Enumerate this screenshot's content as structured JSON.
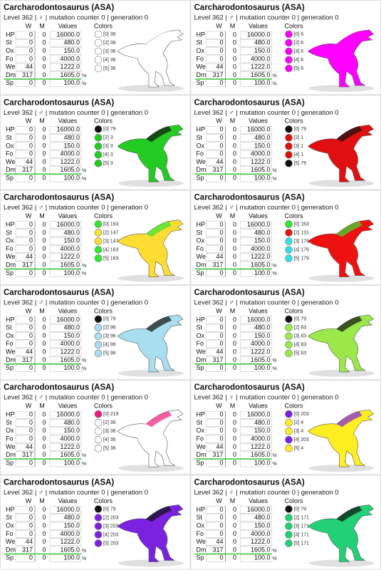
{
  "headers": [
    "W",
    "M",
    "Values",
    "Colors"
  ],
  "cards": [
    {
      "title": "Carcharodontosaurus (ASA)",
      "info": "Level 362 | ♀ | mutation counter 0 | generation 0",
      "stats": [
        [
          "HP",
          "0",
          "0",
          "16000.0",
          ""
        ],
        [
          "St",
          "0",
          "0",
          "480.0",
          ""
        ],
        [
          "Ox",
          "0",
          "0",
          "150.0",
          ""
        ],
        [
          "Fo",
          "0",
          "0",
          "4000.0",
          ""
        ],
        [
          "We",
          "44",
          "0",
          "1222.0",
          ""
        ],
        [
          "Dm",
          "317",
          "0",
          "1605.0",
          "%"
        ],
        [
          "Sp",
          "0",
          "0",
          "100.0",
          "%"
        ]
      ],
      "colors": [
        {
          "label": "[0] 36",
          "color": "#ffffff"
        },
        {
          "label": "[2] 36",
          "color": "#ffffff"
        },
        {
          "label": "[3] 36",
          "color": "#ffffff"
        },
        {
          "label": "[4] 36",
          "color": "#ffffff"
        },
        {
          "label": "[5] 36",
          "color": "#ffffff"
        }
      ]
    },
    {
      "title": "Carcharodontosaurus (ASA)",
      "info": "Level 362 | ♂ | mutation counter 0 | generation 0",
      "stats": [
        [
          "HP",
          "0",
          "0",
          "16000.0",
          ""
        ],
        [
          "St",
          "0",
          "0",
          "480.0",
          ""
        ],
        [
          "Ox",
          "0",
          "0",
          "150.0",
          ""
        ],
        [
          "Fo",
          "0",
          "0",
          "4000.0",
          ""
        ],
        [
          "We",
          "44",
          "0",
          "1222.0",
          ""
        ],
        [
          "Dm",
          "317",
          "0",
          "1605.0",
          "%"
        ],
        [
          "Sp",
          "0",
          "0",
          "100.0",
          "%"
        ]
      ],
      "colors": [
        {
          "label": "[0] 6",
          "color": "#ff00ff"
        },
        {
          "label": "[2] 6",
          "color": "#ff00ff"
        },
        {
          "label": "[3] 6",
          "color": "#ff00ff"
        },
        {
          "label": "[4] 6",
          "color": "#ff00ff"
        },
        {
          "label": "[5] 6",
          "color": "#ff00ff"
        }
      ]
    },
    {
      "title": "Carcharodontosaurus (ASA)",
      "info": "Level 362 | ♂ | mutation counter 0 | generation 0",
      "stats": [
        [
          "HP",
          "0",
          "0",
          "16000.0",
          ""
        ],
        [
          "St",
          "0",
          "0",
          "480.0",
          ""
        ],
        [
          "Ox",
          "0",
          "0",
          "150.0",
          ""
        ],
        [
          "Fo",
          "0",
          "0",
          "4000.0",
          ""
        ],
        [
          "We",
          "44",
          "0",
          "1222.0",
          ""
        ],
        [
          "Dm",
          "317",
          "0",
          "1605.0",
          "%"
        ],
        [
          "Sp",
          "0",
          "0",
          "100.0",
          "%"
        ]
      ],
      "colors": [
        {
          "label": "[0] 79",
          "color": "#111111"
        },
        {
          "label": "[2] 3",
          "color": "#22cc22"
        },
        {
          "label": "[3] 3",
          "color": "#22cc22"
        },
        {
          "label": "[4] 3",
          "color": "#22cc22"
        },
        {
          "label": "[5] 3",
          "color": "#22cc22"
        }
      ]
    },
    {
      "title": "Carcharodontosaurus (ASA)",
      "info": "Level 362 | ♂ | mutation counter 0 | generation 0",
      "stats": [
        [
          "HP",
          "0",
          "0",
          "16000.0",
          ""
        ],
        [
          "St",
          "0",
          "0",
          "480.0",
          ""
        ],
        [
          "Ox",
          "0",
          "0",
          "150.0",
          ""
        ],
        [
          "Fo",
          "0",
          "0",
          "4000.0",
          ""
        ],
        [
          "We",
          "44",
          "0",
          "1222.0",
          ""
        ],
        [
          "Dm",
          "317",
          "0",
          "1605.0",
          "%"
        ],
        [
          "Sp",
          "0",
          "0",
          "100.0",
          "%"
        ]
      ],
      "colors": [
        {
          "label": "[0] 79",
          "color": "#111111"
        },
        {
          "label": "[2] 1",
          "color": "#e01010"
        },
        {
          "label": "[3] 1",
          "color": "#e01010"
        },
        {
          "label": "[4] 1",
          "color": "#e01010"
        },
        {
          "label": "[5] 79",
          "color": "#111111"
        }
      ]
    },
    {
      "title": "Carcharodontosaurus (ASA)",
      "info": "Level 362 | ♂ | mutation counter 0 | generation 0",
      "stats": [
        [
          "HP",
          "0",
          "0",
          "16000.0",
          ""
        ],
        [
          "St",
          "0",
          "0",
          "480.0",
          ""
        ],
        [
          "Ox",
          "0",
          "0",
          "150.0",
          ""
        ],
        [
          "Fo",
          "0",
          "0",
          "4000.0",
          ""
        ],
        [
          "We",
          "44",
          "0",
          "1222.0",
          ""
        ],
        [
          "Dm",
          "317",
          "0",
          "1605.0",
          "%"
        ],
        [
          "Sp",
          "0",
          "0",
          "100.0",
          "%"
        ]
      ],
      "colors": [
        {
          "label": "[0] 163",
          "color": "#33e633"
        },
        {
          "label": "[2] 147",
          "color": "#ffdd33"
        },
        {
          "label": "[3] 147",
          "color": "#ffdd33"
        },
        {
          "label": "[4] 163",
          "color": "#33e633"
        },
        {
          "label": "[5] 163",
          "color": "#33e633"
        }
      ]
    },
    {
      "title": "Carcharodontosaurus (ASA)",
      "info": "Level 362 | ♂ | mutation counter 0 | generation 0",
      "stats": [
        [
          "HP",
          "0",
          "0",
          "16000.0",
          ""
        ],
        [
          "St",
          "0",
          "0",
          "480.0",
          ""
        ],
        [
          "Ox",
          "0",
          "0",
          "150.0",
          ""
        ],
        [
          "Fo",
          "0",
          "0",
          "4000.0",
          ""
        ],
        [
          "We",
          "44",
          "0",
          "1222.0",
          ""
        ],
        [
          "Dm",
          "317",
          "0",
          "1605.0",
          "%"
        ],
        [
          "Sp",
          "0",
          "0",
          "100.0",
          "%"
        ]
      ],
      "colors": [
        {
          "label": "[0] 163",
          "color": "#33e633"
        },
        {
          "label": "[2] 131",
          "color": "#ee1111"
        },
        {
          "label": "[3] 179",
          "color": "#33e0e8"
        },
        {
          "label": "[4] 179",
          "color": "#33e0e8"
        },
        {
          "label": "[5] 179",
          "color": "#33e0e8"
        }
      ]
    },
    {
      "title": "Carcharodontosaurus (ASA)",
      "info": "Level 362 | ♂ | mutation counter 0 | generation 0",
      "stats": [
        [
          "HP",
          "0",
          "0",
          "16000.0",
          ""
        ],
        [
          "St",
          "0",
          "0",
          "480.0",
          ""
        ],
        [
          "Ox",
          "0",
          "0",
          "150.0",
          ""
        ],
        [
          "Fo",
          "0",
          "0",
          "4000.0",
          ""
        ],
        [
          "We",
          "44",
          "0",
          "1222.0",
          ""
        ],
        [
          "Dm",
          "317",
          "0",
          "1605.0",
          "%"
        ],
        [
          "Sp",
          "0",
          "0",
          "100.0",
          "%"
        ]
      ],
      "colors": [
        {
          "label": "[0] 79",
          "color": "#111111"
        },
        {
          "label": "[2] 96",
          "color": "#a8def0"
        },
        {
          "label": "[3] 96",
          "color": "#a8def0"
        },
        {
          "label": "[4] 96",
          "color": "#a8def0"
        },
        {
          "label": "[5] 96",
          "color": "#a8def0"
        }
      ]
    },
    {
      "title": "Carcharodontosaurus (ASA)",
      "info": "Level 362 | ♂ | mutation counter 0 | generation 0",
      "stats": [
        [
          "HP",
          "0",
          "0",
          "16000.0",
          ""
        ],
        [
          "St",
          "0",
          "0",
          "480.0",
          ""
        ],
        [
          "Ox",
          "0",
          "0",
          "150.0",
          ""
        ],
        [
          "Fo",
          "0",
          "0",
          "4000.0",
          ""
        ],
        [
          "We",
          "44",
          "0",
          "1222.0",
          ""
        ],
        [
          "Dm",
          "317",
          "0",
          "1605.0",
          "%"
        ],
        [
          "Sp",
          "0",
          "0",
          "100.0",
          "%"
        ]
      ],
      "colors": [
        {
          "label": "[0] 79",
          "color": "#111111"
        },
        {
          "label": "[2] 83",
          "color": "#9be84a"
        },
        {
          "label": "[3] 83",
          "color": "#9be84a"
        },
        {
          "label": "[4] 83",
          "color": "#9be84a"
        },
        {
          "label": "[5] 83",
          "color": "#9be84a"
        }
      ]
    },
    {
      "title": "Carcharodontosaurus (ASA)",
      "info": "Level 362 | ♂ | mutation counter 0 | generation 0",
      "stats": [
        [
          "HP",
          "0",
          "0",
          "16000.0",
          ""
        ],
        [
          "St",
          "0",
          "0",
          "480.0",
          ""
        ],
        [
          "Ox",
          "0",
          "0",
          "150.0",
          ""
        ],
        [
          "Fo",
          "0",
          "0",
          "4000.0",
          ""
        ],
        [
          "We",
          "44",
          "0",
          "1222.0",
          ""
        ],
        [
          "Dm",
          "317",
          "0",
          "1605.0",
          "%"
        ],
        [
          "Sp",
          "0",
          "0",
          "100.0",
          "%"
        ]
      ],
      "colors": [
        {
          "label": "[0] 219",
          "color": "#ee1a7a"
        },
        {
          "label": "[2] 36",
          "color": "#ffffff"
        },
        {
          "label": "[3] 36",
          "color": "#ffffff"
        },
        {
          "label": "[4] 36",
          "color": "#ffffff"
        },
        {
          "label": "[5] 36",
          "color": "#ffffff"
        }
      ]
    },
    {
      "title": "Carcharodontosaurus (ASA)",
      "info": "Level 362 | ♀ | mutation counter 0 | generation 0",
      "stats": [
        [
          "HP",
          "0",
          "0",
          "16000.0",
          ""
        ],
        [
          "St",
          "0",
          "0",
          "480.0",
          ""
        ],
        [
          "Ox",
          "0",
          "0",
          "150.0",
          ""
        ],
        [
          "Fo",
          "0",
          "0",
          "4000.0",
          ""
        ],
        [
          "We",
          "44",
          "0",
          "1222.0",
          ""
        ],
        [
          "Dm",
          "317",
          "0",
          "1605.0",
          "%"
        ],
        [
          "Sp",
          "0",
          "0",
          "100.0",
          "%"
        ]
      ],
      "colors": [
        {
          "label": "[0] 203",
          "color": "#7a22e0"
        },
        {
          "label": "[2] 4",
          "color": "#ffee22"
        },
        {
          "label": "[3] 4",
          "color": "#ffee22"
        },
        {
          "label": "[4] 203",
          "color": "#7a22e0"
        },
        {
          "label": "[5] 4",
          "color": "#ffee22"
        }
      ]
    },
    {
      "title": "Carcharodontosaurus (ASA)",
      "info": "Level 362 | ♂ | mutation counter 0 | generation 0",
      "stats": [
        [
          "HP",
          "0",
          "0",
          "16000.0",
          ""
        ],
        [
          "St",
          "0",
          "0",
          "480.0",
          ""
        ],
        [
          "Ox",
          "0",
          "0",
          "150.0",
          ""
        ],
        [
          "Fo",
          "0",
          "0",
          "4000.0",
          ""
        ],
        [
          "We",
          "44",
          "0",
          "1222.0",
          ""
        ],
        [
          "Dm",
          "317",
          "0",
          "1605.0",
          "%"
        ],
        [
          "Sp",
          "0",
          "0",
          "100.0",
          "%"
        ]
      ],
      "colors": [
        {
          "label": "[0] 79",
          "color": "#111111"
        },
        {
          "label": "[2] 203",
          "color": "#7a22e0"
        },
        {
          "label": "[3] 203",
          "color": "#7a22e0"
        },
        {
          "label": "[4] 203",
          "color": "#7a22e0"
        },
        {
          "label": "[5] 203",
          "color": "#7a22e0"
        }
      ]
    },
    {
      "title": "Carcharodontosaurus (ASA)",
      "info": "Level 362 | ♀ | mutation counter 0 | generation 0",
      "stats": [
        [
          "HP",
          "0",
          "0",
          "16000.0",
          ""
        ],
        [
          "St",
          "0",
          "0",
          "480.0",
          ""
        ],
        [
          "Ox",
          "0",
          "0",
          "150.0",
          ""
        ],
        [
          "Fo",
          "0",
          "0",
          "4000.0",
          ""
        ],
        [
          "We",
          "44",
          "0",
          "1222.0",
          ""
        ],
        [
          "Dm",
          "317",
          "0",
          "1605.0",
          "%"
        ],
        [
          "Sp",
          "0",
          "0",
          "100.0",
          "%"
        ]
      ],
      "colors": [
        {
          "label": "[0] 79",
          "color": "#111111"
        },
        {
          "label": "[2] 171",
          "color": "#22d078"
        },
        {
          "label": "[3] 171",
          "color": "#22d078"
        },
        {
          "label": "[4] 171",
          "color": "#22d078"
        },
        {
          "label": "[5] 171",
          "color": "#22d078"
        }
      ]
    }
  ]
}
